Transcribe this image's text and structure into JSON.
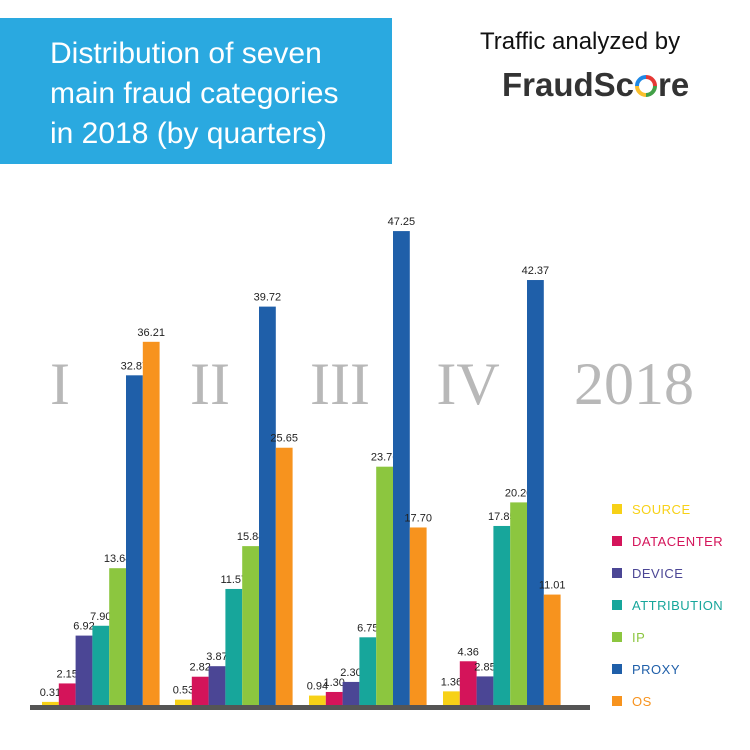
{
  "title": {
    "lines": [
      "Distribution of seven",
      "main fraud categories",
      "in 2018 (by quarters)"
    ]
  },
  "brand": {
    "label": "Traffic analyzed by",
    "name_prefix": "FraudSc",
    "name_suffix": "re"
  },
  "colors": {
    "title_bg": "#2aa9e0",
    "axis": "#555555",
    "quarter_numeral": "#b8b8b8"
  },
  "chart_data": {
    "type": "bar",
    "categories": [
      "I",
      "II",
      "III",
      "IV"
    ],
    "year_label": "2018",
    "ylim": [
      0,
      50
    ],
    "grid": false,
    "legend_position": "right",
    "series": [
      {
        "name": "SOURCE",
        "color": "#f7d117",
        "values": [
          0.31,
          0.53,
          0.94,
          1.36
        ],
        "labels": [
          "0.31",
          "0.53",
          "0.94",
          "1.36"
        ]
      },
      {
        "name": "DATACENTER",
        "color": "#d4145a",
        "values": [
          2.15,
          2.82,
          1.3,
          4.36
        ],
        "labels": [
          "2.15",
          "2.82",
          "1.30",
          "4.36"
        ]
      },
      {
        "name": "DEVICE",
        "color": "#4b4695",
        "values": [
          6.92,
          3.87,
          2.3,
          2.85
        ],
        "labels": [
          "6.92",
          "3.87",
          "2.30",
          "2.85"
        ]
      },
      {
        "name": "ATTRIBUTION",
        "color": "#17a69b",
        "values": [
          7.9,
          11.57,
          6.75,
          17.85
        ],
        "labels": [
          "7.90",
          "11.57",
          "6.75",
          "17.85"
        ]
      },
      {
        "name": "IP",
        "color": "#8cc63f",
        "values": [
          13.64,
          15.84,
          23.76,
          20.2
        ],
        "labels": [
          "13.64",
          "15.84",
          "23.76",
          "20.20"
        ]
      },
      {
        "name": "PROXY",
        "color": "#1f5fa9",
        "values": [
          32.87,
          39.72,
          47.25,
          42.37
        ],
        "labels": [
          "32.87",
          "39.72",
          "47.25",
          "42.37"
        ]
      },
      {
        "name": "OS",
        "color": "#f7931e",
        "values": [
          36.21,
          25.65,
          17.7,
          11.01
        ],
        "labels": [
          "36.21",
          "25.65",
          "17.70",
          "11.01"
        ]
      }
    ]
  }
}
